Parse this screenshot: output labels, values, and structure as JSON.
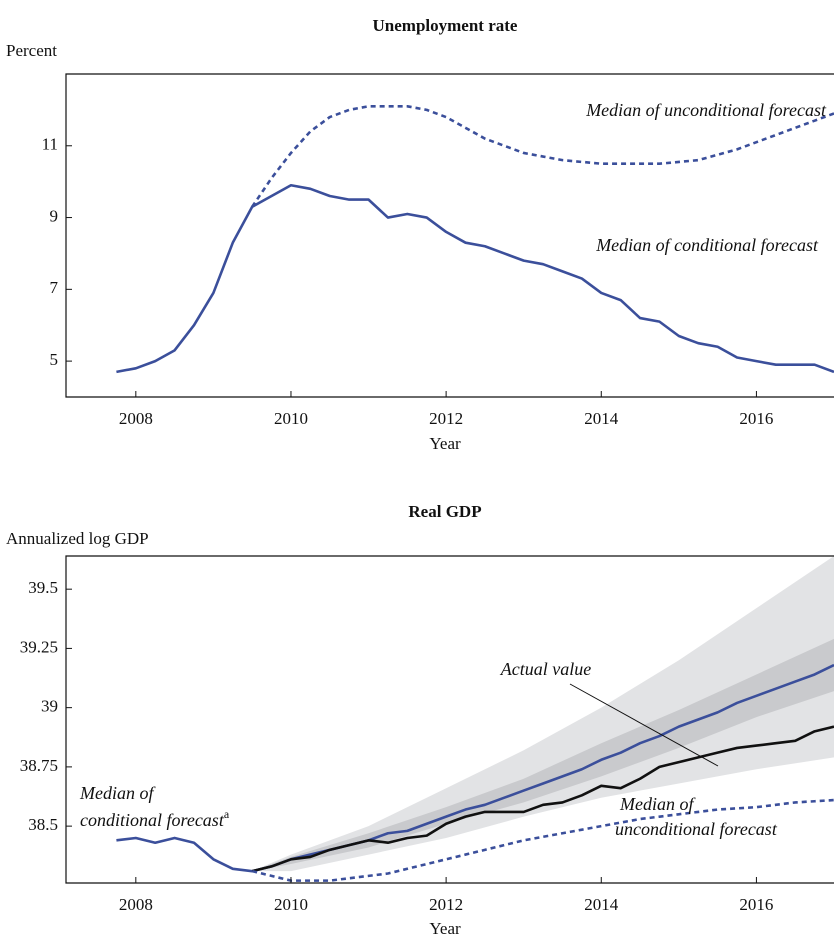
{
  "chart_data": [
    {
      "type": "line",
      "title": "Unemployment rate",
      "y_label": "Percent",
      "x_label": "Year",
      "xlim": [
        2007.1,
        2017
      ],
      "ylim": [
        4,
        13
      ],
      "xticks": [
        2008,
        2010,
        2012,
        2014,
        2016
      ],
      "yticks": [
        5,
        7,
        9,
        11
      ],
      "x": [
        2007.75,
        2008,
        2008.25,
        2008.5,
        2008.75,
        2009,
        2009.25,
        2009.5,
        2009.75,
        2010,
        2010.25,
        2010.5,
        2010.75,
        2011,
        2011.25,
        2011.5,
        2011.75,
        2012,
        2012.25,
        2012.5,
        2012.75,
        2013,
        2013.25,
        2013.5,
        2013.75,
        2014,
        2014.25,
        2014.5,
        2014.75,
        2015,
        2015.25,
        2015.5,
        2015.75,
        2016,
        2016.25,
        2016.5,
        2016.75,
        2017
      ],
      "series": [
        {
          "color": "#3b4f9b",
          "style": "solid",
          "values": [
            4.7,
            4.8,
            5.0,
            5.3,
            6.0,
            6.9,
            8.3,
            9.3,
            9.6,
            9.9,
            9.8,
            9.6,
            9.5,
            9.5,
            9.0,
            9.1,
            9.0,
            8.6,
            8.3,
            8.2,
            8.0,
            7.8,
            7.7,
            7.5,
            7.3,
            6.9,
            6.7,
            6.2,
            6.1,
            5.7,
            5.5,
            5.4,
            5.1,
            5.0,
            4.9,
            4.9,
            4.9,
            4.7
          ]
        },
        {
          "color": "#3b4f9b",
          "style": "dashed",
          "values": [
            null,
            null,
            null,
            null,
            null,
            null,
            null,
            9.3,
            10.1,
            10.8,
            11.4,
            11.8,
            12.0,
            12.1,
            12.1,
            12.1,
            12.0,
            11.8,
            11.5,
            11.2,
            11.0,
            10.8,
            10.7,
            10.6,
            10.55,
            10.5,
            10.5,
            10.5,
            10.5,
            10.55,
            10.6,
            10.75,
            10.9,
            11.1,
            11.3,
            11.5,
            11.7,
            11.9
          ]
        }
      ],
      "annotations": [
        "Median of unconditional forecast",
        "Median of conditional forecast"
      ]
    },
    {
      "type": "line",
      "title": "Real GDP",
      "y_label": "Annualized log GDP",
      "x_label": "Year",
      "xlim": [
        2007.1,
        2017
      ],
      "ylim": [
        38.26,
        39.64
      ],
      "xticks": [
        2008,
        2010,
        2012,
        2014,
        2016
      ],
      "yticks": [
        38.5,
        38.75,
        39,
        39.25,
        39.5
      ],
      "x": [
        2007.75,
        2008,
        2008.25,
        2008.5,
        2008.75,
        2009,
        2009.25,
        2009.5,
        2009.75,
        2010,
        2010.25,
        2010.5,
        2010.75,
        2011,
        2011.25,
        2011.5,
        2011.75,
        2012,
        2012.25,
        2012.5,
        2012.75,
        2013,
        2013.25,
        2013.5,
        2013.75,
        2014,
        2014.25,
        2014.5,
        2014.75,
        2015,
        2015.25,
        2015.5,
        2015.75,
        2016,
        2016.25,
        2016.5,
        2016.75,
        2017
      ],
      "bands": [
        {
          "color": "#e2e3e5",
          "x": [
            2009.5,
            2010,
            2011,
            2012,
            2013,
            2014,
            2015,
            2016,
            2017
          ],
          "lower": [
            38.31,
            38.31,
            38.38,
            38.45,
            38.54,
            38.62,
            38.68,
            38.74,
            38.79
          ],
          "upper": [
            38.31,
            38.38,
            38.5,
            38.66,
            38.82,
            39.0,
            39.2,
            39.42,
            39.64
          ]
        },
        {
          "color": "#c9cacd",
          "x": [
            2009.5,
            2010,
            2011,
            2012,
            2013,
            2014,
            2015,
            2016,
            2017
          ],
          "lower": [
            38.31,
            38.34,
            38.41,
            38.51,
            38.6,
            38.71,
            38.83,
            38.96,
            39.07
          ],
          "upper": [
            38.31,
            38.37,
            38.47,
            38.58,
            38.7,
            38.85,
            38.99,
            39.14,
            39.29
          ]
        }
      ],
      "series": [
        {
          "color": "#3b4f9b",
          "style": "solid",
          "values": [
            38.44,
            38.45,
            38.43,
            38.45,
            38.43,
            38.36,
            38.32,
            38.31,
            38.33,
            38.36,
            38.38,
            38.4,
            38.42,
            38.44,
            38.47,
            38.48,
            38.51,
            38.54,
            38.57,
            38.59,
            38.62,
            38.65,
            38.68,
            38.71,
            38.74,
            38.78,
            38.81,
            38.85,
            38.88,
            38.92,
            38.95,
            38.98,
            39.02,
            39.05,
            39.08,
            39.11,
            39.14,
            39.18
          ]
        },
        {
          "color": "#111111",
          "style": "solid",
          "values": [
            null,
            null,
            null,
            null,
            null,
            null,
            null,
            38.31,
            38.33,
            38.36,
            38.37,
            38.4,
            38.42,
            38.44,
            38.43,
            38.45,
            38.46,
            38.51,
            38.54,
            38.56,
            38.56,
            38.56,
            38.59,
            38.6,
            38.63,
            38.67,
            38.66,
            38.7,
            38.75,
            38.77,
            38.79,
            38.81,
            38.83,
            38.84,
            38.85,
            38.86,
            38.9,
            38.92
          ]
        },
        {
          "color": "#3b4f9b",
          "style": "dashed",
          "values": [
            null,
            null,
            null,
            null,
            null,
            null,
            null,
            38.31,
            38.29,
            38.27,
            38.27,
            38.27,
            38.28,
            38.29,
            38.3,
            38.32,
            38.34,
            38.36,
            38.38,
            38.4,
            38.42,
            38.44,
            38.455,
            38.47,
            38.485,
            38.5,
            38.515,
            38.53,
            38.54,
            38.55,
            38.56,
            38.57,
            38.575,
            38.58,
            38.59,
            38.6,
            38.605,
            38.61
          ]
        }
      ],
      "annotations": [
        "Actual value",
        "Median of",
        "conditional forecast",
        "Median of",
        "unconditional forecast"
      ],
      "footnote_marker": "a"
    }
  ]
}
